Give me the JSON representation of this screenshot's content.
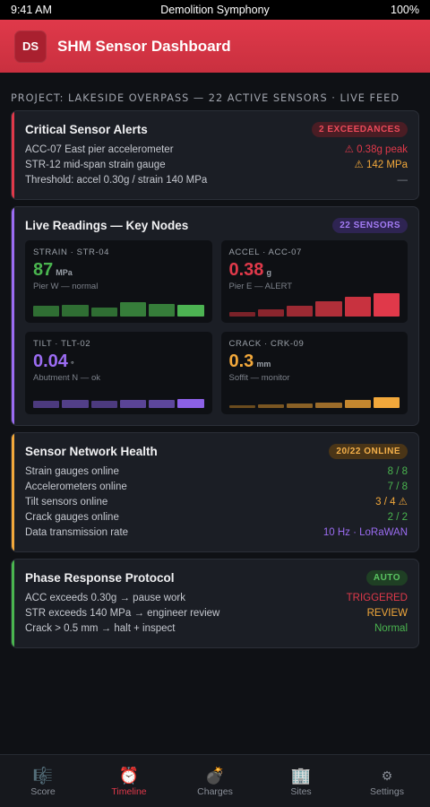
{
  "status": {
    "time": "9:41 AM",
    "carrier": "Demolition Symphony",
    "battery": "100%"
  },
  "header": {
    "logo": "DS",
    "title": "SHM Sensor Dashboard"
  },
  "project": "PROJECT: LAKESIDE OVERPASS — 22 ACTIVE SENSORS · LIVE FEED",
  "alerts": {
    "title": "Critical Sensor Alerts",
    "badge": "2 EXCEEDANCES",
    "rows": [
      {
        "label": "ACC-07 East pier accelerometer",
        "value": "⚠ 0.38g peak",
        "color": "#e0394a"
      },
      {
        "label": "STR-12 mid-span strain gauge",
        "value": "⚠ 142 MPa",
        "color": "#f2a83b"
      },
      {
        "label": "Threshold: accel 0.30g / strain 140 MPa",
        "value": "—",
        "color": "#7c818a"
      }
    ]
  },
  "readings": {
    "title": "Live Readings — Key Nodes",
    "badge": "22 SENSORS",
    "tiles": [
      {
        "label": "STRAIN · STR-04",
        "value": "87",
        "unit": "MPa",
        "sub": "Pier W — normal",
        "color": "#4ab54f",
        "levels": [
          0.45,
          0.5,
          0.4,
          0.6,
          0.55,
          0.5
        ],
        "bar_colors": [
          "#2f6e33",
          "#2f6e33",
          "#2f6e33",
          "#367d3a",
          "#367d3a",
          "#4cb352"
        ]
      },
      {
        "label": "ACCEL · ACC-07",
        "value": "0.38",
        "unit": "g",
        "sub": "Pier E — ALERT",
        "color": "#e0394a",
        "levels": [
          0.2,
          0.3,
          0.45,
          0.65,
          0.85,
          1.0
        ],
        "bar_colors": [
          "#7a2229",
          "#8a252d",
          "#9c2a33",
          "#b02f39",
          "#c8323f",
          "#e0394a"
        ]
      },
      {
        "label": "TILT · TLT-02",
        "value": "0.04",
        "unit": "°",
        "sub": "Abutment N — ok",
        "color": "#9b6cf2",
        "levels": [
          0.3,
          0.35,
          0.3,
          0.35,
          0.35,
          0.4
        ],
        "bar_colors": [
          "#4c3a7e",
          "#523f88",
          "#4c3a7e",
          "#5a4496",
          "#5d479c",
          "#8c61e6"
        ]
      },
      {
        "label": "CRACK · CRK-09",
        "value": "0.3",
        "unit": "mm",
        "sub": "Soffit — monitor",
        "color": "#f2a83b",
        "levels": [
          0.1,
          0.15,
          0.2,
          0.25,
          0.35,
          0.45
        ],
        "bar_colors": [
          "#6a4b1e",
          "#7a5622",
          "#8a6126",
          "#9c6c2a",
          "#c4872f",
          "#f2a83b"
        ]
      }
    ]
  },
  "network": {
    "title": "Sensor Network Health",
    "badge": "20/22 ONLINE",
    "rows": [
      {
        "label": "Strain gauges online",
        "value": "8 / 8",
        "color": "#4ab54f"
      },
      {
        "label": "Accelerometers online",
        "value": "7 / 8",
        "color": "#4ab54f"
      },
      {
        "label": "Tilt sensors online",
        "value": "3 / 4 ⚠",
        "color": "#f2a83b"
      },
      {
        "label": "Crack gauges online",
        "value": "2 / 2",
        "color": "#4ab54f"
      },
      {
        "label": "Data transmission rate",
        "value": "10 Hz · LoRaWAN",
        "color": "#9b6cf2"
      }
    ]
  },
  "protocol": {
    "title": "Phase Response Protocol",
    "badge": "AUTO",
    "rows": [
      {
        "label": "ACC exceeds 0.30g → pause work",
        "value": "TRIGGERED",
        "color": "#e0394a"
      },
      {
        "label": "STR exceeds 140 MPa → engineer review",
        "value": "REVIEW",
        "color": "#f2a83b"
      },
      {
        "label": "Crack > 0.5 mm → halt + inspect",
        "value": "Normal",
        "color": "#4ab54f"
      }
    ]
  },
  "tabs": [
    {
      "label": "Score",
      "icon": "🎼",
      "name": "score"
    },
    {
      "label": "Timeline",
      "icon": "⏰",
      "name": "timeline",
      "active": true
    },
    {
      "label": "Charges",
      "icon": "💣",
      "name": "charges"
    },
    {
      "label": "Sites",
      "icon": "🏢",
      "name": "sites"
    },
    {
      "label": "Settings",
      "icon": "⚙",
      "name": "settings"
    }
  ],
  "colors": {
    "red": "#e0394a",
    "amber": "#f2a83b",
    "purple": "#9b6cf2",
    "green": "#4ab54f"
  }
}
